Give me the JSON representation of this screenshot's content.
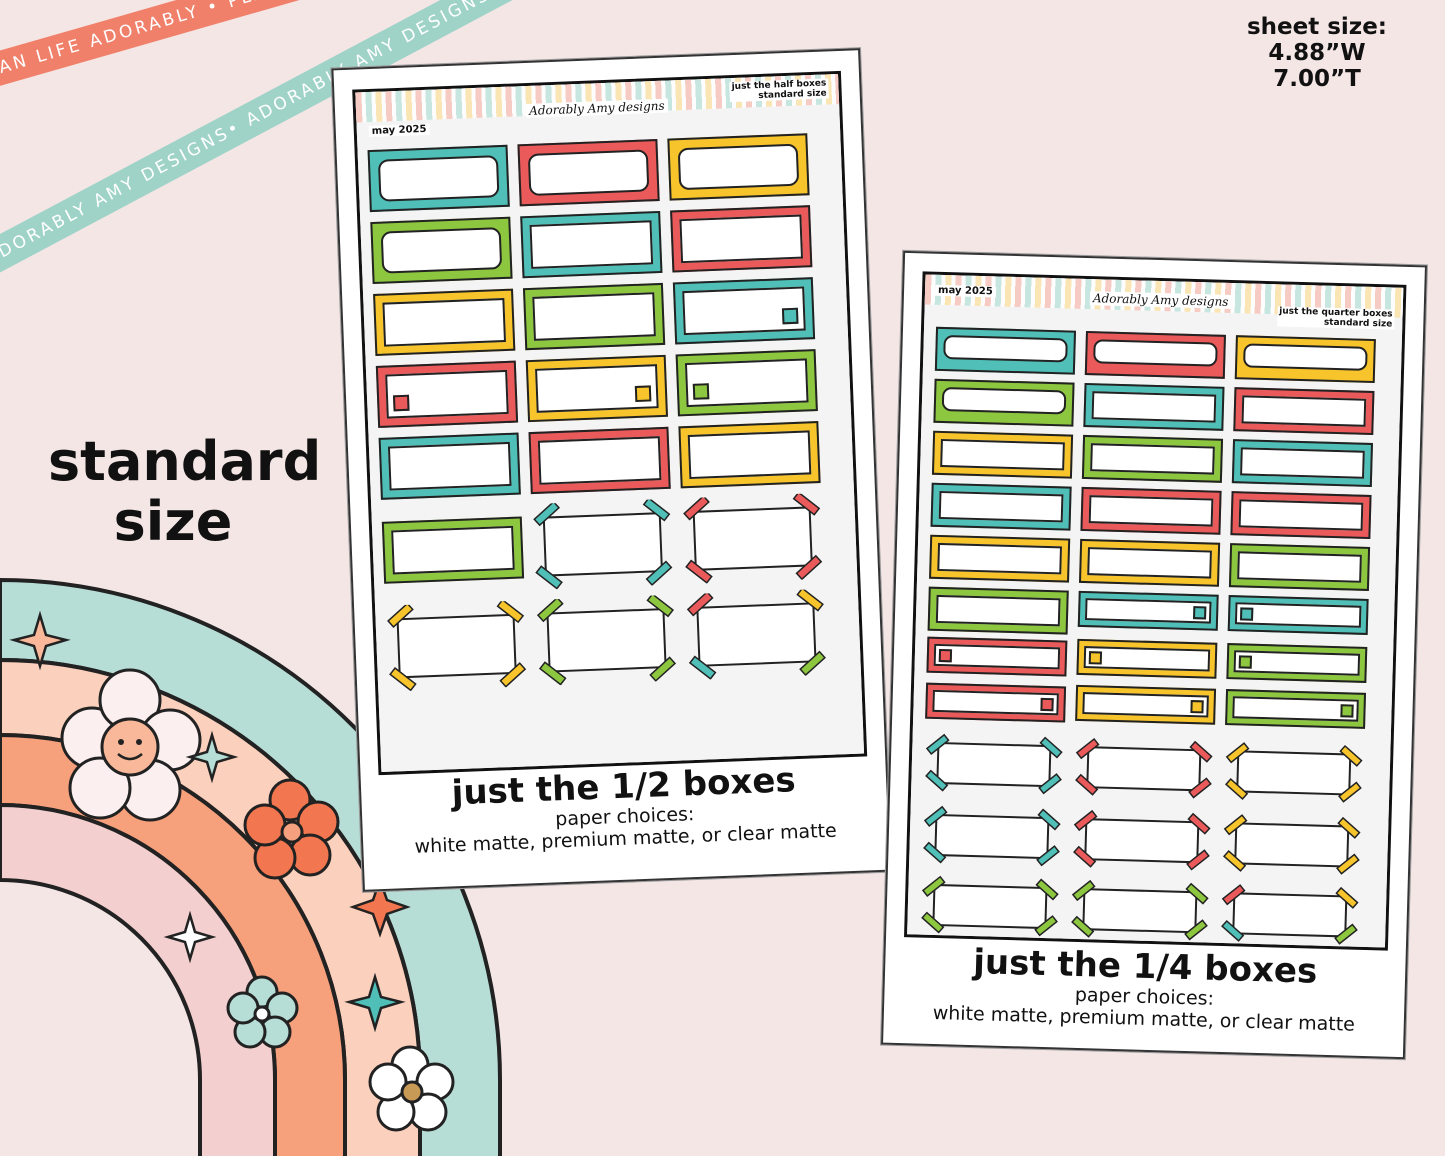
{
  "ribbons": {
    "orange": "PLAN LIFE ADORABLY • PLAN LIFE ADORABLY • PLAN LIFE ADORABLY • PLAN LIFE ADORABLY •",
    "teal": "ADORABLY AMY DESIGNS• ADORABLY AMY DESIGNS• ADORABLY AMY DESIGNS• AD"
  },
  "sheet_size": {
    "label": "sheet size:",
    "width": "4.88”W",
    "height": "7.00”T"
  },
  "size_label": {
    "line1": "standard",
    "line2": "size"
  },
  "colors": {
    "teal": "#4fbfb8",
    "red": "#ea5a5a",
    "yellow": "#f7c52b",
    "green": "#8dc63f",
    "background": "#f5e6e6"
  },
  "sheets": [
    {
      "month": "may 2025",
      "brand": "Adorably Amy designs",
      "title_line1": "just the half boxes",
      "title_line2": "standard size",
      "caption_title": "just the 1/2 boxes",
      "caption_sub": "paper choices:",
      "caption_options": "white matte, premium matte, or clear matte"
    },
    {
      "month": "may 2025",
      "brand": "Adorably Amy designs",
      "title_line1": "just the quarter boxes",
      "title_line2": "standard size",
      "caption_title": "just the 1/4 boxes",
      "caption_sub": "paper choices:",
      "caption_options": "white matte, premium matte, or clear matte"
    }
  ]
}
